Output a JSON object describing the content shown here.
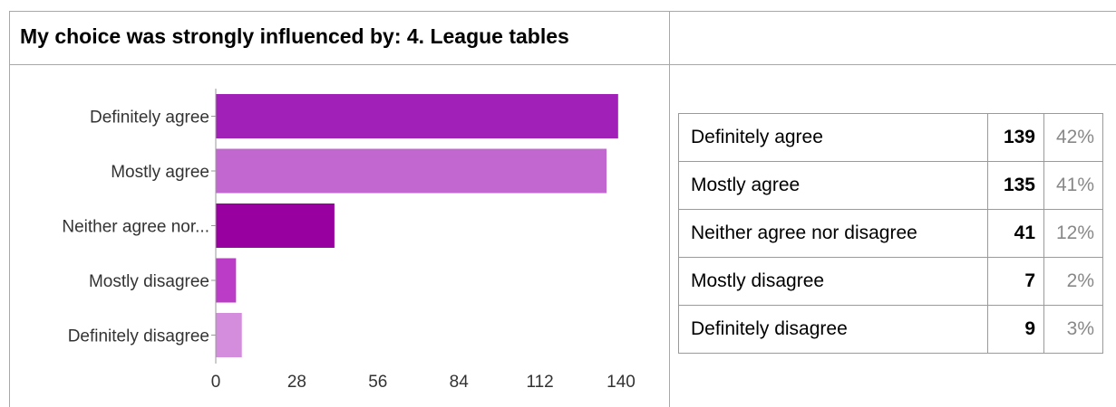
{
  "title": "My choice was strongly influenced by:  4. League tables",
  "chart_data": {
    "type": "bar",
    "orientation": "horizontal",
    "categories": [
      "Definitely agree",
      "Mostly agree",
      "Neither agree nor...",
      "Mostly disagree",
      "Definitely disagree"
    ],
    "values": [
      139,
      135,
      41,
      7,
      9
    ],
    "colors": [
      "#a020b8",
      "#c266d0",
      "#98009f",
      "#bb3cc7",
      "#d48ddd"
    ],
    "xticks": [
      0,
      28,
      56,
      84,
      112,
      140
    ],
    "xlim": [
      0,
      140
    ],
    "title": "",
    "xlabel": "",
    "ylabel": "",
    "grid": false,
    "legend": "none"
  },
  "summary_table": {
    "rows": [
      {
        "label": "Definitely agree",
        "count": "139",
        "percent": "42%"
      },
      {
        "label": "Mostly agree",
        "count": "135",
        "percent": "41%"
      },
      {
        "label": "Neither agree nor disagree",
        "count": "41",
        "percent": "12%"
      },
      {
        "label": "Mostly disagree",
        "count": "7",
        "percent": "2%"
      },
      {
        "label": "Definitely disagree",
        "count": "9",
        "percent": "3%"
      }
    ]
  }
}
